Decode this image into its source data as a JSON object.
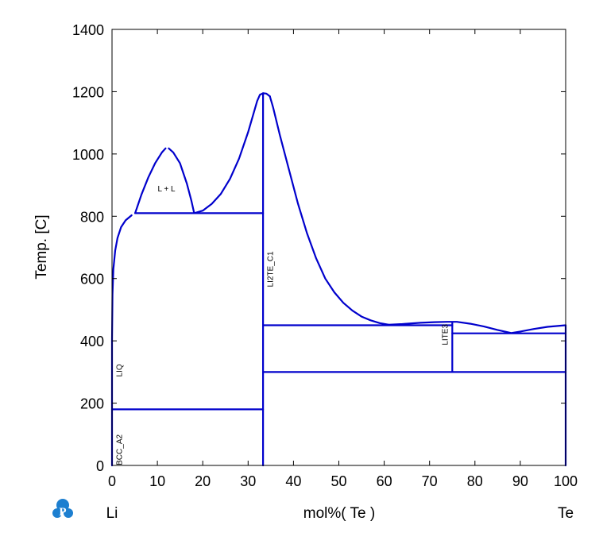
{
  "chart_data": {
    "type": "line",
    "title": "",
    "xlabel": "mol%(  Te  )",
    "ylabel": "Temp.  [C]",
    "left_element": "Li",
    "right_element": "Te",
    "xlim": [
      0,
      100
    ],
    "ylim": [
      0,
      1400
    ],
    "x_ticks": [
      "0",
      "10",
      "20",
      "30",
      "40",
      "50",
      "60",
      "70",
      "80",
      "90",
      "100"
    ],
    "y_ticks": [
      "0",
      "200",
      "400",
      "600",
      "800",
      "1000",
      "1200",
      "1400"
    ],
    "line_color": "#0000cc",
    "grid": false,
    "curves": [
      {
        "name": "liquidus-li-side",
        "points": [
          [
            0,
            400
          ],
          [
            0.1,
            550
          ],
          [
            0.3,
            630
          ],
          [
            0.7,
            690
          ],
          [
            1.2,
            730
          ],
          [
            2,
            765
          ],
          [
            3,
            787
          ],
          [
            4.3,
            803
          ]
        ]
      },
      {
        "name": "miscibility-gap-left",
        "points": [
          [
            5.1,
            810
          ],
          [
            6.5,
            870
          ],
          [
            8,
            925
          ],
          [
            9.5,
            970
          ],
          [
            11,
            1005
          ],
          [
            11.8,
            1018
          ]
        ]
      },
      {
        "name": "miscibility-gap-right",
        "points": [
          [
            12.5,
            1018
          ],
          [
            13.5,
            1005
          ],
          [
            15,
            970
          ],
          [
            16.5,
            905
          ],
          [
            17.5,
            850
          ],
          [
            18.1,
            810
          ]
        ]
      },
      {
        "name": "liquidus-li2te-left",
        "points": [
          [
            18.1,
            810
          ],
          [
            20,
            818
          ],
          [
            22,
            840
          ],
          [
            24,
            872
          ],
          [
            26,
            920
          ],
          [
            28,
            985
          ],
          [
            30,
            1070
          ],
          [
            31,
            1120
          ],
          [
            32,
            1170
          ],
          [
            32.6,
            1190
          ],
          [
            33.3,
            1195
          ],
          [
            34,
            1194
          ],
          [
            34.8,
            1185
          ]
        ]
      },
      {
        "name": "liquidus-li2te-right",
        "points": [
          [
            34.8,
            1185
          ],
          [
            35.5,
            1150
          ],
          [
            37,
            1060
          ],
          [
            39,
            950
          ],
          [
            41,
            840
          ],
          [
            43,
            745
          ],
          [
            45,
            665
          ],
          [
            47,
            600
          ],
          [
            49,
            556
          ],
          [
            51,
            522
          ],
          [
            53,
            497
          ],
          [
            55,
            478
          ],
          [
            57,
            466
          ],
          [
            59,
            457
          ],
          [
            61,
            452
          ]
        ]
      },
      {
        "name": "liquidus-te-rich",
        "points": [
          [
            61,
            452
          ],
          [
            64,
            454
          ],
          [
            68,
            458
          ],
          [
            71,
            460
          ],
          [
            74,
            461
          ],
          [
            76,
            461
          ],
          [
            79,
            455
          ],
          [
            82,
            446
          ],
          [
            85,
            435
          ],
          [
            88,
            425
          ],
          [
            90,
            430
          ],
          [
            93,
            438
          ],
          [
            96,
            445
          ],
          [
            100,
            450
          ]
        ]
      },
      {
        "name": "monotectic-line",
        "points": [
          [
            5.1,
            810
          ],
          [
            33.3,
            810
          ]
        ]
      },
      {
        "name": "li2te-line",
        "points": [
          [
            33.3,
            0
          ],
          [
            33.3,
            1195
          ]
        ]
      },
      {
        "name": "li-solvus",
        "points": [
          [
            0,
            0
          ],
          [
            0,
            400
          ]
        ]
      },
      {
        "name": "li-eutectic",
        "points": [
          [
            0,
            180
          ],
          [
            33.3,
            180
          ]
        ]
      },
      {
        "name": "peritectic-450",
        "points": [
          [
            33.3,
            450
          ],
          [
            75,
            450
          ]
        ]
      },
      {
        "name": "lite3-line",
        "points": [
          [
            75,
            300
          ],
          [
            75,
            460
          ]
        ]
      },
      {
        "name": "eutectic-425",
        "points": [
          [
            75,
            424
          ],
          [
            100,
            424
          ]
        ]
      },
      {
        "name": "eutectoid-300",
        "points": [
          [
            33.3,
            300
          ],
          [
            100,
            300
          ]
        ]
      },
      {
        "name": "te-edge",
        "points": [
          [
            100,
            0
          ],
          [
            100,
            450
          ]
        ]
      }
    ],
    "annotations": [
      {
        "text": "L + L",
        "x": 12,
        "y": 880,
        "rotate": false
      },
      {
        "text": "LI2TE_C1",
        "x": 35.5,
        "y": 630,
        "rotate": true
      },
      {
        "text": "LIQ",
        "x": 2.2,
        "y": 305,
        "rotate": true
      },
      {
        "text": "BCC_A2",
        "x": 2.2,
        "y": 50,
        "rotate": true
      },
      {
        "text": "LITE3",
        "x": 74,
        "y": 420,
        "rotate": true
      }
    ]
  },
  "logo": {
    "letter": "P"
  }
}
